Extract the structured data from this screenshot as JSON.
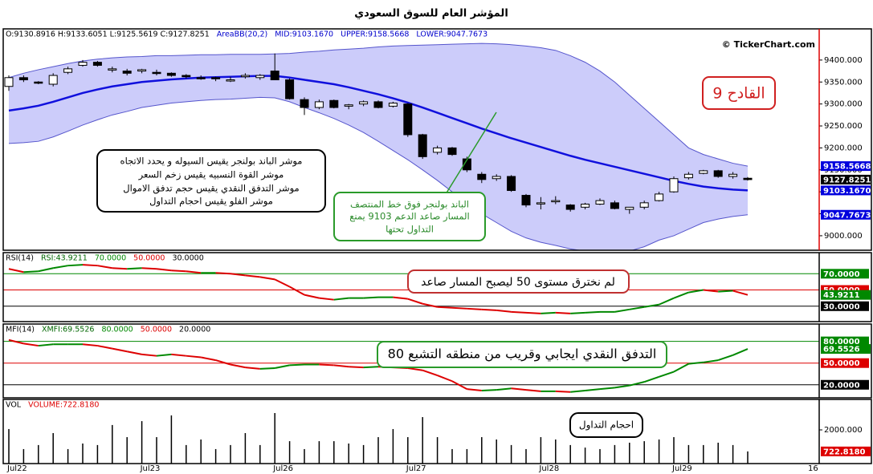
{
  "title": "المؤشر العام للسوق السعودي",
  "copyright": "© TickerChart.com",
  "annotations": [
    {
      "lines": [
        "موشر الباند بولنجر يقيس السيوله و يحدد الاتجاه",
        "موشر القوة النسبيه يقيس زخم السعر",
        "موشر التدفق النقدي يقيس حجم تدفق الاموال",
        "موشر الفلو يقيس احجام التداول"
      ]
    },
    {
      "lines": [
        "الباند بولنجر فوق خط المنتصف",
        "المسار صاعد الدعم 9103 يمنع",
        "التداول تحتها"
      ]
    },
    {
      "lines": [
        "القادح 9"
      ]
    },
    {
      "lines": [
        "لم نخترق مستوى 50 ليصبح المسار صاعد"
      ]
    },
    {
      "lines": [
        "التدفق النقدي ايجابي وقريب من منطقه التشبع 80"
      ]
    },
    {
      "lines": [
        "احجام التداول"
      ]
    }
  ],
  "chart_data": [
    {
      "type": "candlestick",
      "header": [
        {
          "text": "O:9130.8916 H:9133.6051 L:9125.5619 C:9127.8251",
          "color": "#000000"
        },
        {
          "text": "AreaBB(20,2)",
          "color": "#0000cc"
        },
        {
          "text": "MID:9103.1670",
          "color": "#0000cc"
        },
        {
          "text": "UPPER:9158.5668",
          "color": "#0000cc"
        },
        {
          "text": "LOWER:9047.7673",
          "color": "#0000cc"
        }
      ],
      "open": [
        9340,
        9360,
        9350,
        9345,
        9372,
        9388,
        9395,
        9380,
        9375,
        9375,
        9372,
        9370,
        9365,
        9360,
        9360,
        9355,
        9362,
        9360,
        9375,
        9355,
        9310,
        9292,
        9308,
        9295,
        9300,
        9305,
        9295,
        9300,
        9230,
        9190,
        9200,
        9175,
        9140,
        9130,
        9135,
        9092,
        9075,
        9078,
        9070,
        9065,
        9072,
        9075,
        9060,
        9065,
        9080,
        9100,
        9132,
        9142,
        9148,
        9135,
        9130.8916
      ],
      "high": [
        9365,
        9365,
        9352,
        9370,
        9385,
        9400,
        9398,
        9385,
        9380,
        9380,
        9378,
        9372,
        9368,
        9365,
        9362,
        9362,
        9370,
        9368,
        9415,
        9358,
        9315,
        9310,
        9310,
        9300,
        9308,
        9308,
        9305,
        9302,
        9232,
        9205,
        9202,
        9180,
        9145,
        9140,
        9138,
        9095,
        9088,
        9090,
        9072,
        9075,
        9085,
        9080,
        9065,
        9080,
        9100,
        9135,
        9145,
        9150,
        9150,
        9145,
        9133.6051
      ],
      "low": [
        9330,
        9350,
        9345,
        9340,
        9368,
        9385,
        9385,
        9372,
        9365,
        9370,
        9365,
        9362,
        9358,
        9355,
        9352,
        9350,
        9358,
        9355,
        9355,
        9310,
        9275,
        9288,
        9290,
        9288,
        9295,
        9290,
        9292,
        9225,
        9175,
        9185,
        9182,
        9145,
        9120,
        9125,
        9100,
        9065,
        9060,
        9072,
        9055,
        9060,
        9070,
        9060,
        9050,
        9060,
        9078,
        9098,
        9128,
        9140,
        9132,
        9130,
        9125.5619
      ],
      "close": [
        9360,
        9355,
        9348,
        9365,
        9380,
        9395,
        9388,
        9380,
        9370,
        9378,
        9370,
        9365,
        9362,
        9358,
        9358,
        9355,
        9365,
        9365,
        9355,
        9312,
        9292,
        9305,
        9292,
        9298,
        9305,
        9292,
        9302,
        9230,
        9180,
        9200,
        9185,
        9150,
        9128,
        9135,
        9103,
        9070,
        9075,
        9080,
        9060,
        9072,
        9080,
        9062,
        9065,
        9075,
        9095,
        9130,
        9140,
        9148,
        9135,
        9140,
        9127.8251
      ],
      "up_color": "#ffffff",
      "down_color": "#000000",
      "band_fill": "#ccccfa",
      "series": [
        {
          "color": "#5555cc",
          "values": [
            9360,
            9370,
            9378,
            9385,
            9392,
            9398,
            9402,
            9405,
            9407,
            9408,
            9410,
            9410,
            9411,
            9412,
            9412,
            9413,
            9413,
            9413,
            9414,
            9415,
            9418,
            9420,
            9423,
            9425,
            9427,
            9430,
            9432,
            9433,
            9434,
            9435,
            9436,
            9437,
            9438,
            9437,
            9435,
            9432,
            9428,
            9422,
            9410,
            9395,
            9375,
            9350,
            9320,
            9290,
            9260,
            9230,
            9200,
            9185,
            9175,
            9165,
            9158.5668
          ]
        },
        {
          "color": "#1010dd",
          "values": [
            9285,
            9290,
            9296,
            9305,
            9315,
            9325,
            9333,
            9340,
            9345,
            9350,
            9353,
            9356,
            9358,
            9360,
            9361,
            9362,
            9363,
            9364,
            9364,
            9360,
            9355,
            9350,
            9345,
            9338,
            9330,
            9322,
            9313,
            9303,
            9292,
            9280,
            9268,
            9256,
            9244,
            9233,
            9222,
            9212,
            9202,
            9192,
            9182,
            9173,
            9165,
            9157,
            9149,
            9141,
            9133,
            9125,
            9118,
            9112,
            9108,
            9105,
            9103.167
          ]
        },
        {
          "color": "#5555cc",
          "values": [
            9210,
            9212,
            9215,
            9225,
            9238,
            9252,
            9264,
            9275,
            9283,
            9292,
            9297,
            9302,
            9305,
            9308,
            9310,
            9311,
            9313,
            9315,
            9314,
            9305,
            9292,
            9280,
            9267,
            9252,
            9235,
            9215,
            9194,
            9173,
            9150,
            9126,
            9100,
            9076,
            9050,
            9030,
            9010,
            8995,
            8985,
            8978,
            8970,
            8965,
            8962,
            8962,
            8965,
            8975,
            8990,
            9000,
            9015,
            9030,
            9038,
            9044,
            9047.7673
          ]
        }
      ],
      "ylim": [
        8967,
        9471
      ],
      "yticks": [
        {
          "value": 9000,
          "label": "9000.000"
        },
        {
          "value": 9050,
          "label": "9050.000"
        },
        {
          "value": 9100,
          "label": "9100.000"
        },
        {
          "value": 9150,
          "label": "9150.000"
        },
        {
          "value": 9200,
          "label": "9200.000"
        },
        {
          "value": 9250,
          "label": "9250.000"
        },
        {
          "value": 9300,
          "label": "9300.000"
        },
        {
          "value": 9350,
          "label": "9350.000"
        },
        {
          "value": 9400,
          "label": "9400.000"
        }
      ],
      "tags": [
        {
          "value": 9158.5668,
          "label": "9158.5668",
          "color": "#0000dd"
        },
        {
          "value": 9127.8251,
          "label": "9127.8251",
          "color": "#000000"
        },
        {
          "value": 9103.167,
          "label": "9103.1670",
          "color": "#0000dd"
        },
        {
          "value": 9047.7673,
          "label": "9047.7673",
          "color": "#0000dd"
        }
      ]
    },
    {
      "type": "line",
      "header": [
        {
          "text": "RSI(14)",
          "color": "#000000"
        },
        {
          "text": "RSI:43.9211",
          "color": "#006600"
        }
      ],
      "values": [
        76,
        72,
        73,
        77,
        80,
        81,
        80,
        77,
        76,
        77,
        76,
        74,
        73,
        71,
        71,
        70,
        68,
        66,
        63,
        54,
        44,
        40,
        38,
        40,
        40,
        41,
        41,
        39,
        33,
        29,
        28,
        27,
        26,
        25,
        23,
        22,
        21,
        22,
        21,
        22,
        23,
        23,
        26,
        29,
        32,
        40,
        47,
        50,
        48,
        49,
        43.9211
      ],
      "up_color": "#008800",
      "down_color": "#dd0000",
      "ylim": [
        11,
        96
      ],
      "levels": [
        {
          "value": 70,
          "label": "70.0000",
          "color": "#008800"
        },
        {
          "value": 50,
          "label": "50.0000",
          "color": "#dd0000"
        },
        {
          "value": 30,
          "label": "30.0000",
          "color": "#000000"
        }
      ],
      "tags": [
        {
          "value": 43.9211,
          "label": "43.9211",
          "color": "#008800"
        }
      ]
    },
    {
      "type": "line",
      "header": [
        {
          "text": "MFI(14)",
          "color": "#000000"
        },
        {
          "text": "XMFI:69.5526",
          "color": "#006600"
        }
      ],
      "values": [
        82,
        77,
        74,
        76,
        76,
        76,
        74,
        70,
        66,
        62,
        60,
        62,
        60,
        58,
        54,
        48,
        44,
        42,
        43,
        47,
        48,
        48,
        47,
        45,
        44,
        45,
        44,
        43,
        40,
        33,
        25,
        14,
        12,
        13,
        15,
        13,
        11,
        11,
        10,
        12,
        14,
        16,
        19,
        24,
        31,
        38,
        49,
        51,
        54,
        61,
        69.5526
      ],
      "up_color": "#008800",
      "down_color": "#dd0000",
      "ylim": [
        2,
        104
      ],
      "levels": [
        {
          "value": 80,
          "label": "80.0000",
          "color": "#008800"
        },
        {
          "value": 50,
          "label": "50.0000",
          "color": "#dd0000"
        },
        {
          "value": 20,
          "label": "20.0000",
          "color": "#000000"
        }
      ],
      "tags": [
        {
          "value": 69.5526,
          "label": "69.5526",
          "color": "#008800"
        }
      ]
    },
    {
      "type": "bar",
      "header": [
        {
          "text": "VOL",
          "color": "#000000"
        },
        {
          "text": "VOLUME:722.8180",
          "color": "#dd0000"
        }
      ],
      "values": [
        2050,
        860,
        1100,
        1810,
        860,
        1190,
        1100,
        2290,
        1570,
        2520,
        1570,
        2860,
        1100,
        1430,
        860,
        1100,
        1810,
        1100,
        3000,
        1330,
        860,
        1330,
        1330,
        1190,
        1100,
        1570,
        2050,
        1570,
        2760,
        1570,
        860,
        860,
        1570,
        1430,
        1100,
        860,
        1570,
        1430,
        1100,
        950,
        860,
        1100,
        1240,
        1330,
        1430,
        1570,
        1100,
        1100,
        1240,
        1100,
        722.818
      ],
      "color": "#000000",
      "ylim": [
        0,
        3810
      ],
      "yticks": [
        {
          "value": 2000,
          "label": "2000.000"
        }
      ],
      "tags": [
        {
          "value": 722.818,
          "label": "722.8180",
          "color": "#dd0000"
        }
      ],
      "categories": [
        "Jul22",
        null,
        null,
        null,
        null,
        null,
        null,
        null,
        null,
        "Jul23",
        null,
        null,
        null,
        null,
        null,
        null,
        null,
        null,
        "Jul26",
        null,
        null,
        null,
        null,
        null,
        null,
        null,
        null,
        "Jul27",
        null,
        null,
        null,
        null,
        null,
        null,
        null,
        null,
        "Jul28",
        null,
        null,
        null,
        null,
        null,
        null,
        null,
        null,
        "Jul29",
        null,
        null,
        null,
        null,
        null
      ],
      "end_label": "16"
    }
  ]
}
